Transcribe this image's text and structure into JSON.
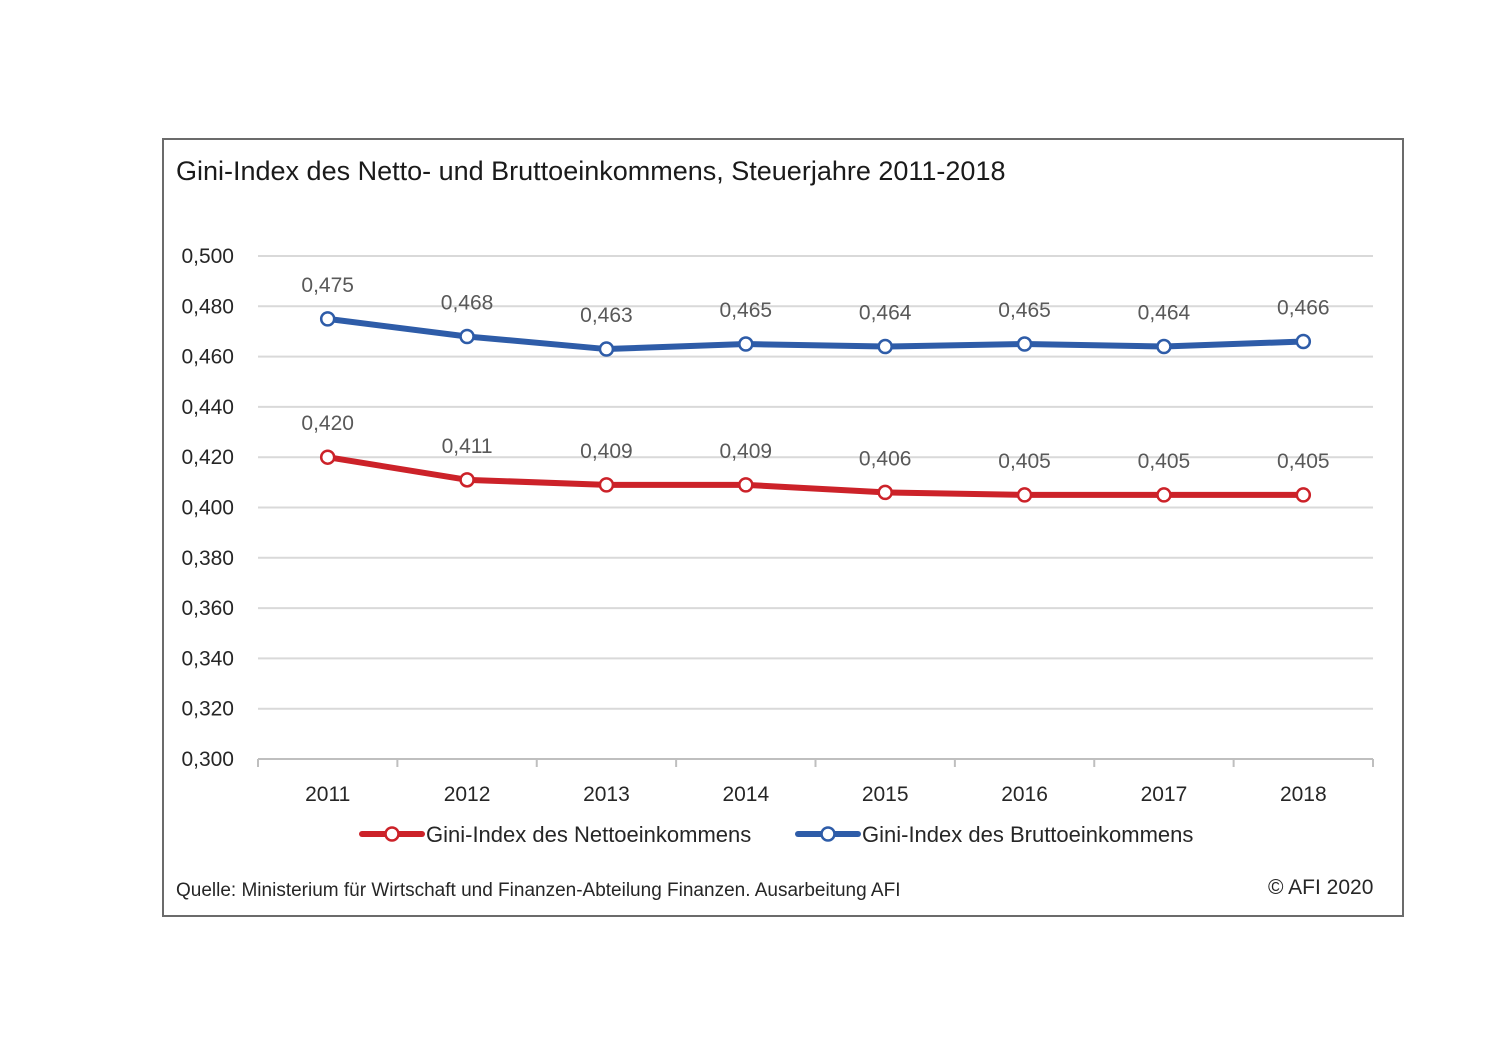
{
  "chart_data": {
    "type": "line",
    "title": "Gini-Index des Netto- und Bruttoeinkommens, Steuerjahre 2011-2018",
    "xlabel": "",
    "ylabel": "",
    "ylim": [
      0.3,
      0.5
    ],
    "ytick_values": [
      0.3,
      0.32,
      0.34,
      0.36,
      0.38,
      0.4,
      0.42,
      0.44,
      0.46,
      0.48,
      0.5
    ],
    "ytick_labels": [
      "0,300",
      "0,320",
      "0,340",
      "0,360",
      "0,380",
      "0,400",
      "0,420",
      "0,440",
      "0,460",
      "0,480",
      "0,500"
    ],
    "categories": [
      "2011",
      "2012",
      "2013",
      "2014",
      "2015",
      "2016",
      "2017",
      "2018"
    ],
    "grid": true,
    "legend_position": "bottom",
    "series": [
      {
        "name": "Gini-Index des Nettoeinkommens",
        "color": "#cc2229",
        "values": [
          0.42,
          0.411,
          0.409,
          0.409,
          0.406,
          0.405,
          0.405,
          0.405
        ],
        "labels": [
          "0,420",
          "0,411",
          "0,409",
          "0,409",
          "0,406",
          "0,405",
          "0,405",
          "0,405"
        ]
      },
      {
        "name": "Gini-Index des Bruttoeinkommens",
        "color": "#2e5ca8",
        "values": [
          0.475,
          0.468,
          0.463,
          0.465,
          0.464,
          0.465,
          0.464,
          0.466
        ],
        "labels": [
          "0,475",
          "0,468",
          "0,463",
          "0,465",
          "0,464",
          "0,465",
          "0,464",
          "0,466"
        ]
      }
    ]
  },
  "footer": {
    "source": "Quelle: Ministerium für Wirtschaft und Finanzen-Abteilung Finanzen.  Ausarbeitung AFI",
    "copyright": "© AFI 2020"
  },
  "colors": {
    "frame": "#6b6b6b",
    "grid": "#d9d9d9",
    "axis_text": "#262626",
    "data_label": "#595959"
  }
}
